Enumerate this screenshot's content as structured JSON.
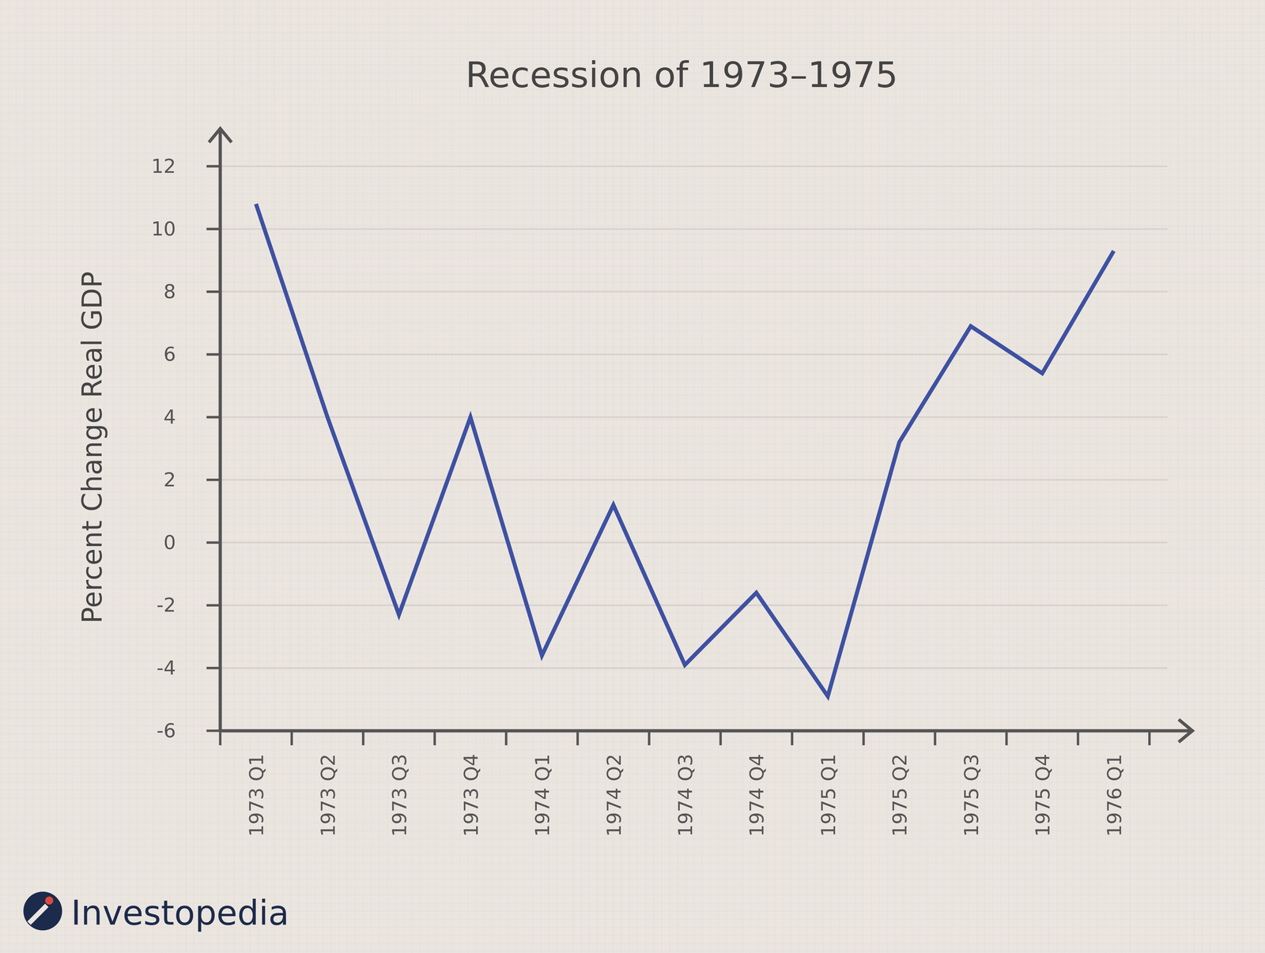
{
  "chart_data": {
    "type": "line",
    "title": "Recession of 1973–1975",
    "y_label": "Percent Change Real GDP",
    "source": "Investopedia",
    "categories": [
      "1973 Q1",
      "1973 Q2",
      "1973 Q3",
      "1973 Q4",
      "1974 Q1",
      "1974 Q2",
      "1974 Q3",
      "1974 Q4",
      "1975 Q1",
      "1975 Q2",
      "1975 Q3",
      "1975 Q4",
      "1976 Q1"
    ],
    "values": [
      10.8,
      4.0,
      -2.3,
      4.0,
      -3.6,
      1.2,
      -3.9,
      -1.6,
      -4.9,
      3.2,
      6.9,
      5.4,
      9.3
    ],
    "color": "#3e51a2",
    "ylim": [
      -6,
      13.2
    ],
    "yticks": [
      -6,
      -4,
      -2,
      0,
      2,
      4,
      6,
      8,
      10,
      12
    ],
    "grid": true
  }
}
